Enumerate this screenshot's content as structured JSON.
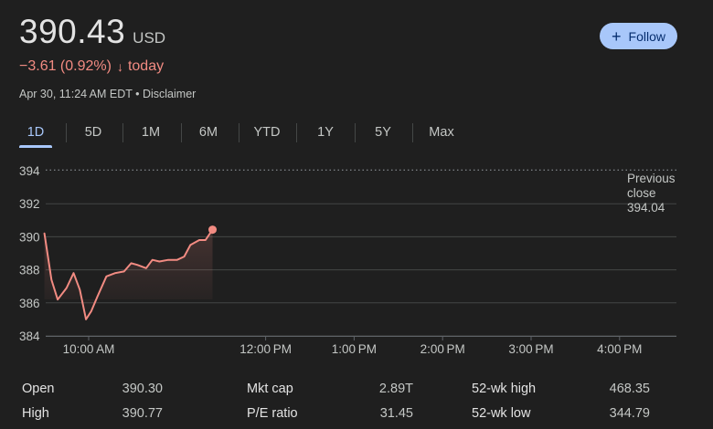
{
  "quote": {
    "price": "390.43",
    "currency": "USD",
    "change": "−3.61 (0.92%)",
    "change_arrow": "↓",
    "change_period": "today",
    "timestamp": "Apr 30, 11:24 AM EDT",
    "separator": " • ",
    "disclaimer": "Disclaimer",
    "color_down": "#f28b82"
  },
  "follow_button": {
    "icon": "plus-icon",
    "label": "Follow",
    "color": "#a8c7fa"
  },
  "tabs": [
    {
      "label": "1D",
      "active": true
    },
    {
      "label": "5D"
    },
    {
      "label": "1M"
    },
    {
      "label": "6M"
    },
    {
      "label": "YTD"
    },
    {
      "label": "1Y"
    },
    {
      "label": "5Y"
    },
    {
      "label": "Max"
    }
  ],
  "chart_data": {
    "type": "line",
    "ylim": [
      384,
      394
    ],
    "yticks": [
      "394",
      "392",
      "390",
      "388",
      "386",
      "384"
    ],
    "xticks": [
      "10:00 AM",
      "12:00 PM",
      "1:00 PM",
      "2:00 PM",
      "3:00 PM",
      "4:00 PM"
    ],
    "xtick_times": [
      10.0,
      12.0,
      13.0,
      14.0,
      15.0,
      16.0
    ],
    "xlim": [
      9.5,
      16.0
    ],
    "series": [
      {
        "x": [
          9.5,
          9.58,
          9.65,
          9.75,
          9.83,
          9.9,
          9.97,
          10.03,
          10.1,
          10.2,
          10.3,
          10.4,
          10.48,
          10.55,
          10.65,
          10.72,
          10.8,
          10.9,
          11.0,
          11.08,
          11.15,
          11.25,
          11.32,
          11.4
        ],
        "y": [
          390.2,
          387.4,
          386.2,
          386.9,
          387.8,
          386.8,
          385.0,
          385.5,
          386.4,
          387.6,
          387.8,
          387.9,
          388.4,
          388.3,
          388.1,
          388.6,
          388.5,
          388.6,
          388.6,
          388.8,
          389.5,
          389.8,
          389.8,
          390.43
        ]
      }
    ],
    "line_color": "#f28b82",
    "reference_line": {
      "value": 394.04,
      "label_lines": [
        "Previous",
        "close",
        "394.04"
      ]
    },
    "grid": true
  },
  "stats": {
    "col1": [
      {
        "label": "Open",
        "value": "390.30"
      },
      {
        "label": "High",
        "value": "390.77"
      }
    ],
    "col2": [
      {
        "label": "Mkt cap",
        "value": "2.89T"
      },
      {
        "label": "P/E ratio",
        "value": "31.45"
      }
    ],
    "col3": [
      {
        "label": "52-wk high",
        "value": "468.35"
      },
      {
        "label": "52-wk low",
        "value": "344.79"
      }
    ]
  }
}
